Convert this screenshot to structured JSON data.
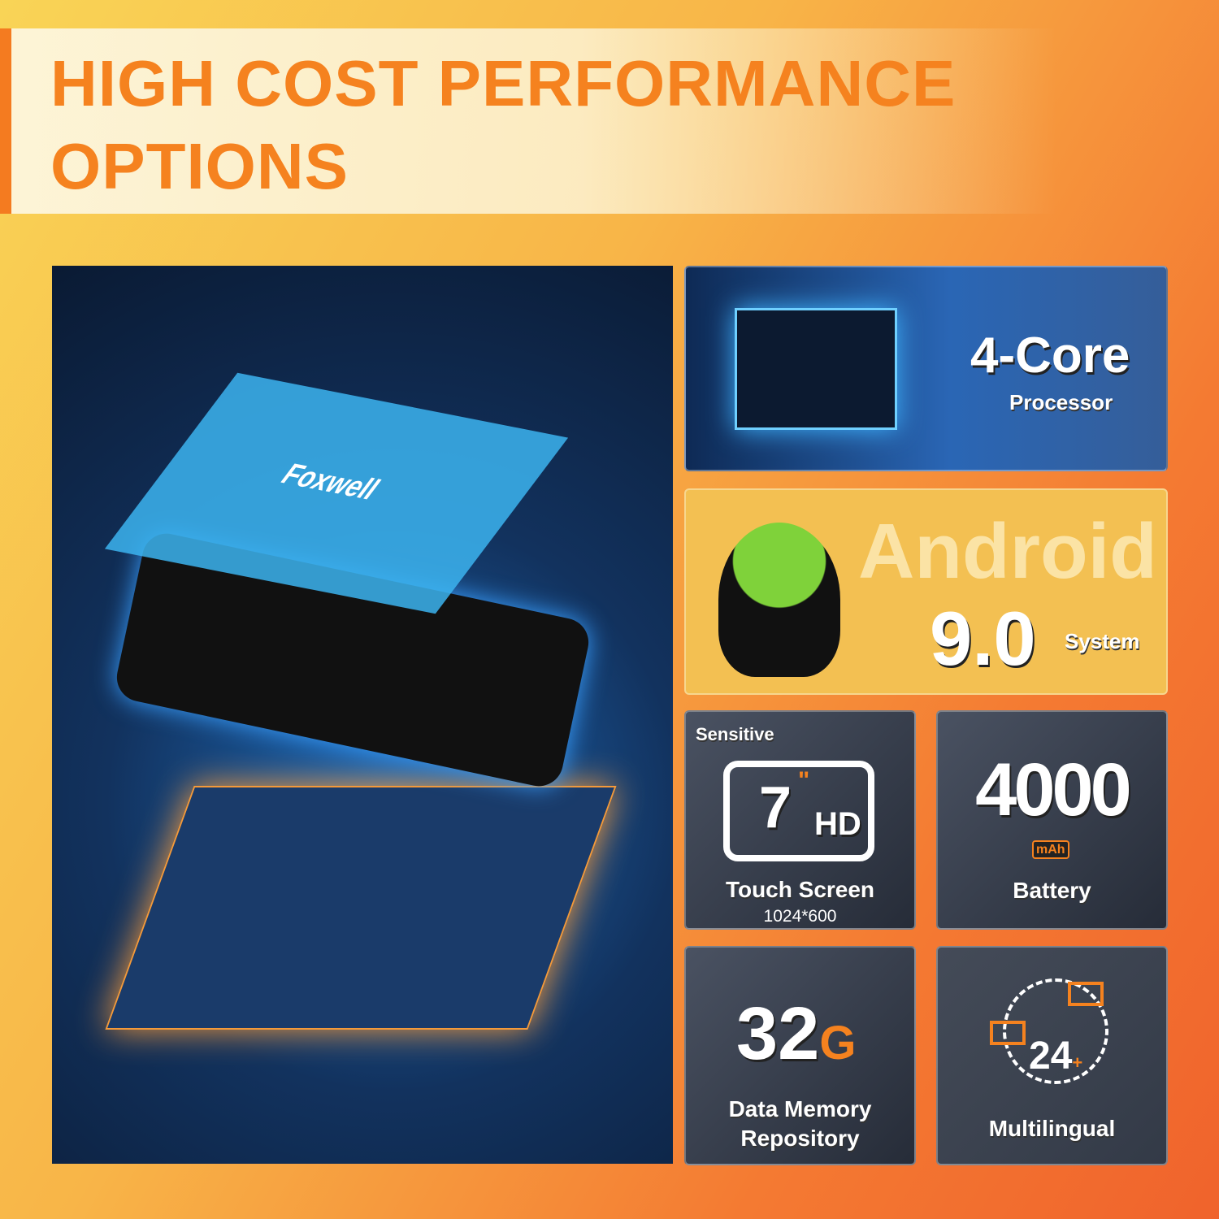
{
  "header": {
    "line1": "HIGH COST PERFORMANCE",
    "line2": "OPTIONS"
  },
  "hero": {
    "brand_logo": "Foxwell"
  },
  "cards": {
    "processor": {
      "big": "4-Core",
      "label": "Processor"
    },
    "android": {
      "big": "Android",
      "version": "9.0",
      "label": "System"
    },
    "screen": {
      "top": "Sensitive",
      "size": "7",
      "unit": "\"",
      "hd": "HD",
      "label": "Touch Screen",
      "resolution": "1024*600"
    },
    "battery": {
      "big": "4000",
      "unit": "mAh",
      "label": "Battery"
    },
    "memory": {
      "big": "32",
      "unit": "G",
      "label1": "Data Memory",
      "label2": "Repository"
    },
    "language": {
      "count": "24",
      "plus": "+",
      "label": "Multilingual"
    }
  },
  "colors": {
    "accent": "#f5821f",
    "card_dark": "#2f3542",
    "android_bg": "#f3c052"
  }
}
